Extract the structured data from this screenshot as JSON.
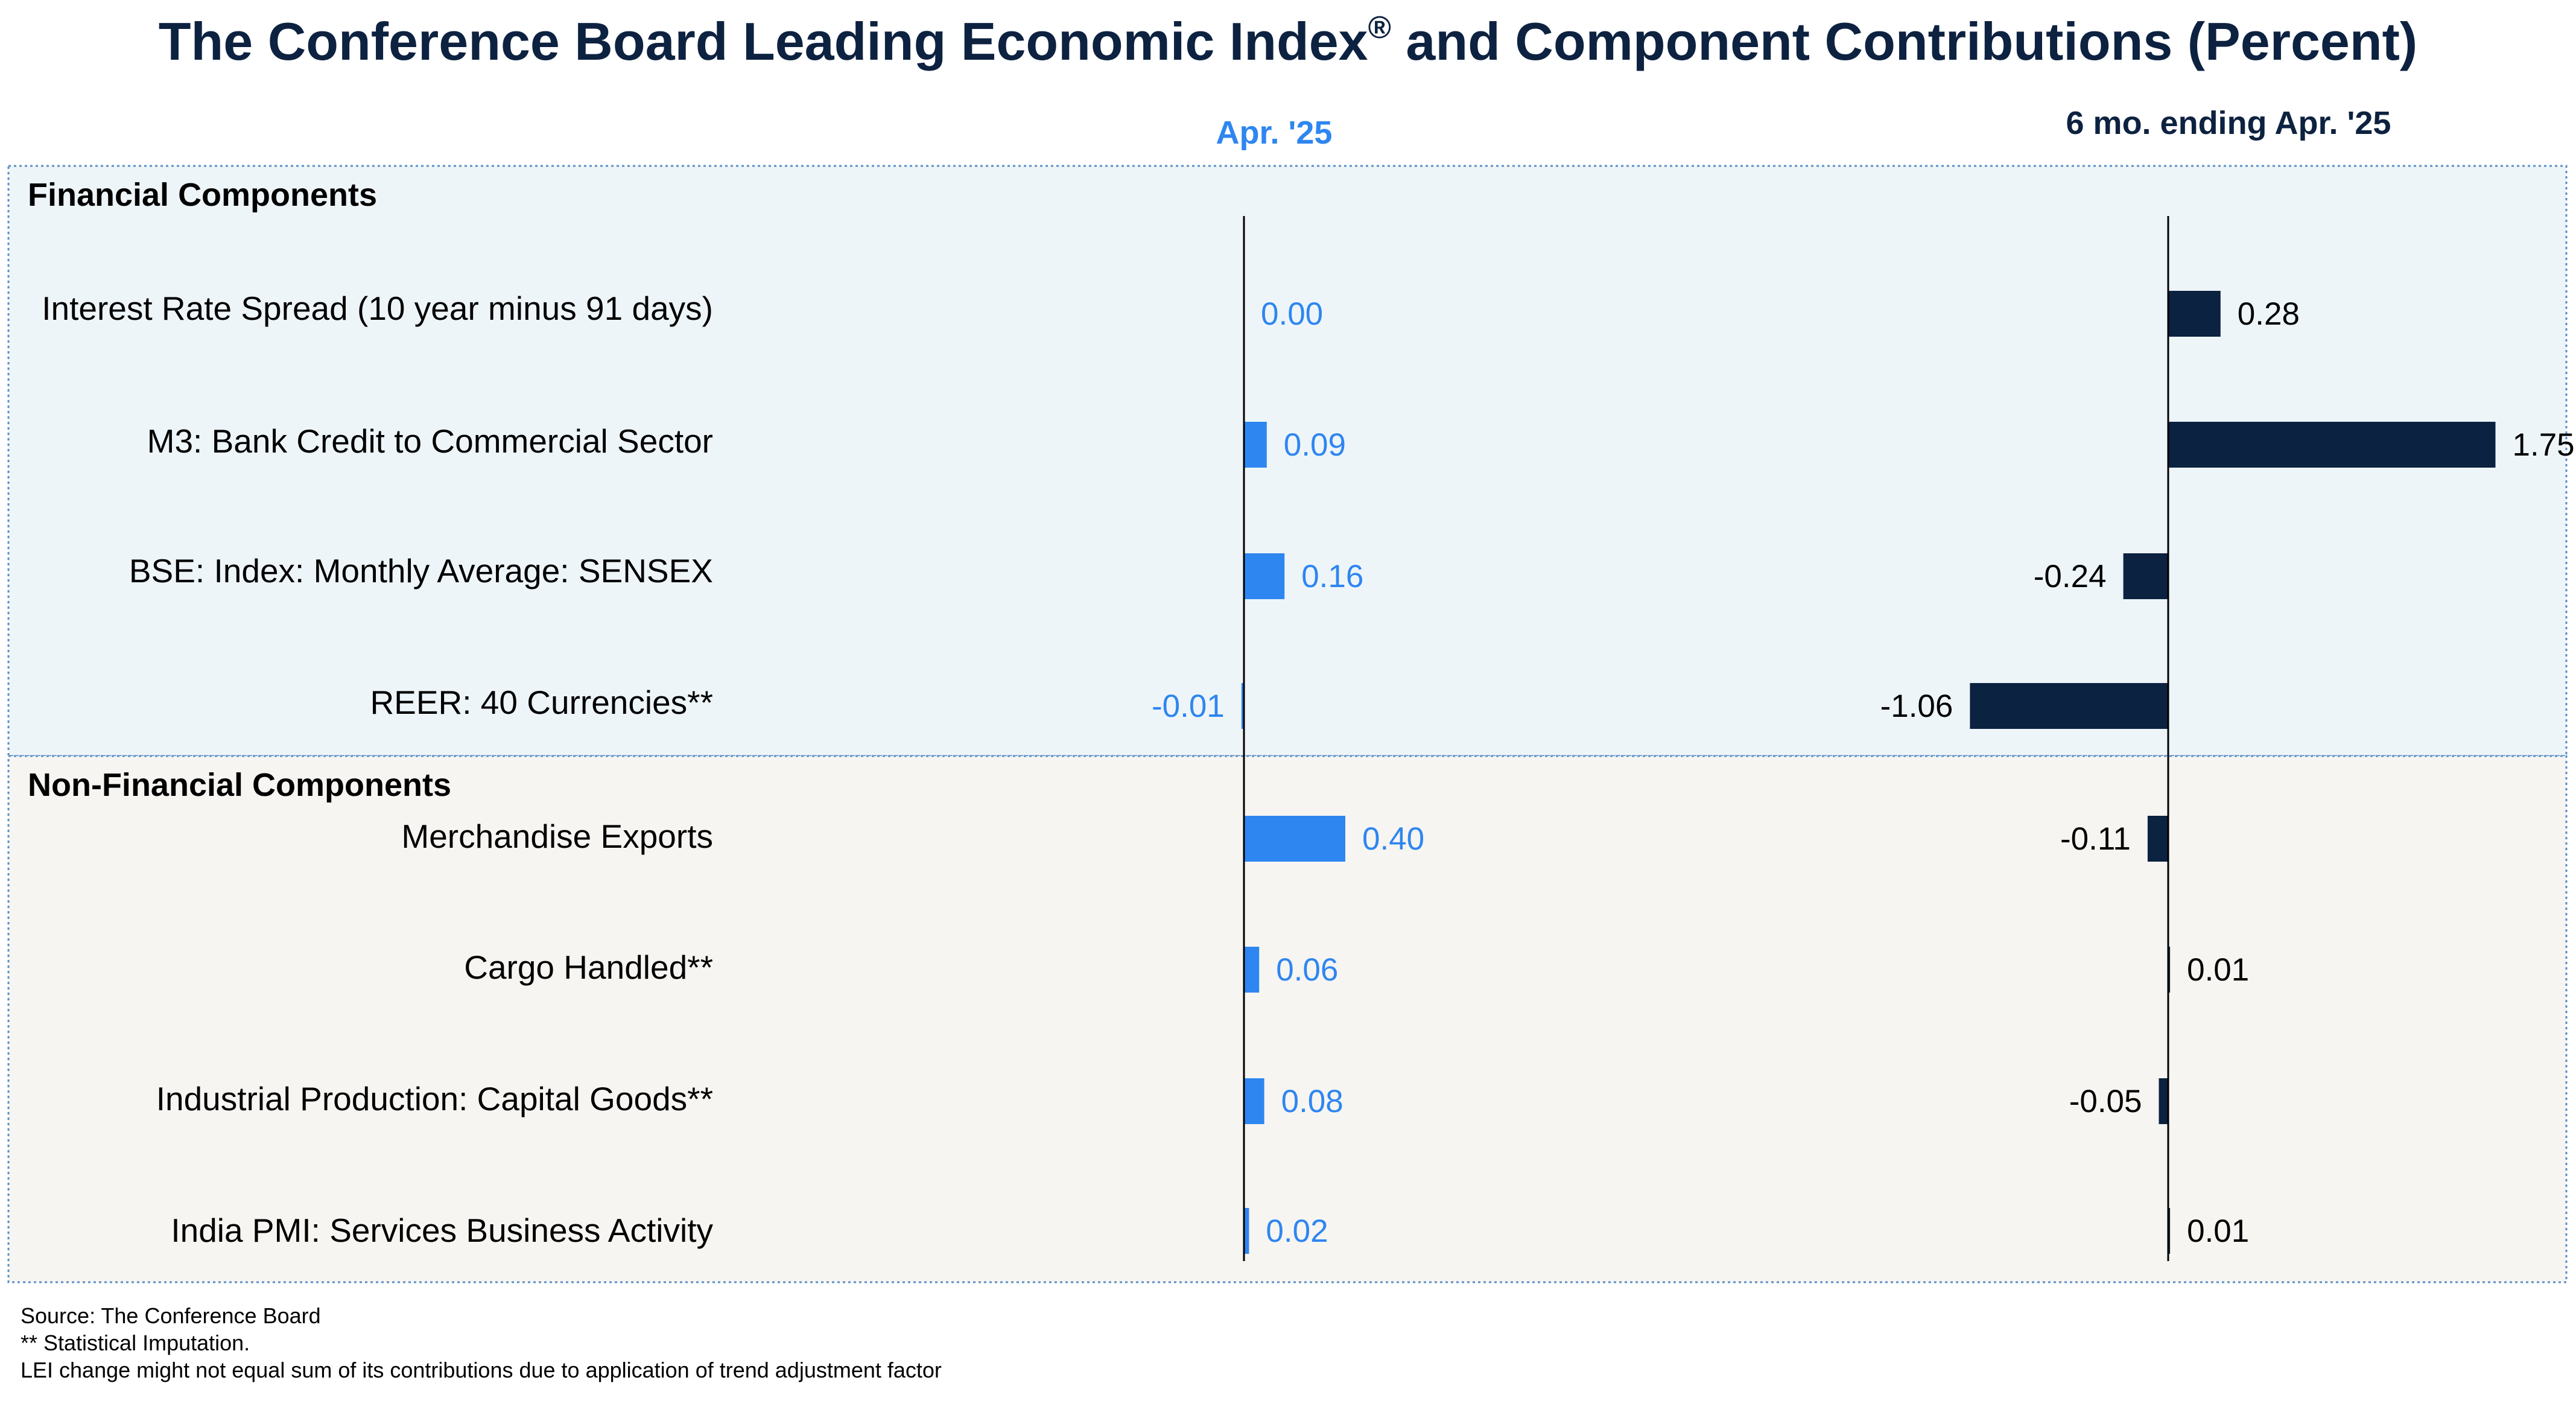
{
  "title_main": "The Conference Board Leading Economic Index",
  "title_mark": "®",
  "title_rest": " and Component Contributions (Percent)",
  "colors": {
    "title": "#0d2240",
    "apr_series": "#2e86f0",
    "six_mo_series": "#0b2240",
    "financial_bg": "#eef5f9",
    "nonfinancial_bg": "#f6f5f2",
    "section_border": "#5b8ec7"
  },
  "sections": [
    {
      "name": "Financial Components",
      "rows": [
        0,
        1,
        2,
        3
      ]
    },
    {
      "name": "Non-Financial Components",
      "rows": [
        4,
        5,
        6,
        7
      ]
    }
  ],
  "chart_data": {
    "type": "bar",
    "orientation": "horizontal",
    "categories": [
      "Interest Rate Spread (10 year minus 91 days)",
      "M3: Bank Credit to Commercial Sector",
      "BSE: Index: Monthly Average: SENSEX",
      "REER: 40 Currencies**",
      "Merchandise Exports",
      "Cargo Handled**",
      "Industrial Production: Capital Goods**",
      "India PMI: Services Business Activity"
    ],
    "series": [
      {
        "name": "Apr. '25",
        "values": [
          0.0,
          0.09,
          0.16,
          -0.01,
          0.4,
          0.06,
          0.08,
          0.02
        ],
        "labels": [
          "0.00",
          "0.09",
          "0.16",
          "-0.01",
          "0.40",
          "0.06",
          "0.08",
          "0.02"
        ]
      },
      {
        "name": "6 mo. ending Apr. '25",
        "values": [
          0.28,
          1.75,
          -0.24,
          -1.06,
          -0.11,
          0.01,
          -0.05,
          0.01
        ],
        "labels": [
          "0.28",
          "1.75",
          "-0.24",
          "-1.06",
          "-0.11",
          "0.01",
          "-0.05",
          "0.01"
        ]
      }
    ]
  },
  "footnotes": [
    "Source: The Conference Board",
    "**  Statistical Imputation.",
    "LEI change might not equal sum of its contributions due to application of trend adjustment factor"
  ]
}
